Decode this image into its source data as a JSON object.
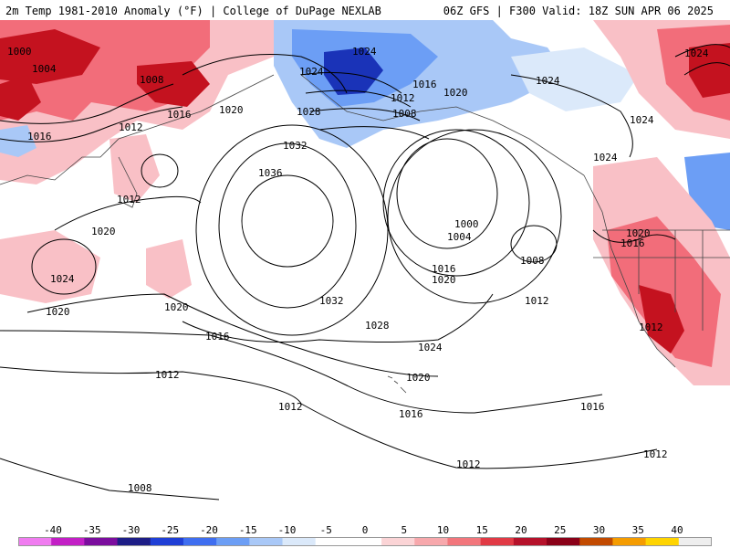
{
  "header": {
    "title_left": "2m Temp 1981-2010 Anomaly (°F) | College of DuPage NEXLAB",
    "title_right": "06Z GFS | F300 Valid: 18Z SUN APR 06 2025"
  },
  "legend": {
    "ticks": [
      "-40",
      "-35",
      "-30",
      "-25",
      "-20",
      "-15",
      "-10",
      "-5",
      "0",
      "5",
      "10",
      "15",
      "20",
      "25",
      "30",
      "35",
      "40"
    ],
    "colors": [
      "#f07cf0",
      "#c31fc6",
      "#7b0d9e",
      "#1d1d86",
      "#1f3fd6",
      "#3f6ef0",
      "#6c9ef5",
      "#a9c8f7",
      "#dbe9fa",
      "#ffffff",
      "#ffffff",
      "#fbd4d6",
      "#f7a8ac",
      "#f2767c",
      "#e13a45",
      "#b5112a",
      "#8a0018",
      "#c24a00",
      "#f59c00",
      "#ffd400",
      "#eeeeee"
    ]
  },
  "isobars": [
    {
      "value": "1000",
      "label": "1000"
    },
    {
      "value": "1004",
      "label": "1004"
    },
    {
      "value": "1008",
      "label": "1008"
    },
    {
      "value": "1012",
      "label": "1012"
    },
    {
      "value": "1016",
      "label": "1016"
    },
    {
      "value": "1020",
      "label": "1020"
    },
    {
      "value": "1024",
      "label": "1024"
    },
    {
      "value": "1028",
      "label": "1028"
    },
    {
      "value": "1032",
      "label": "1032"
    },
    {
      "value": "1036",
      "label": "1036"
    }
  ],
  "colors": {
    "warm": "#f26d7a",
    "warm_light": "#f9c0c6",
    "hot": "#c4121f",
    "cold": "#2d5be0",
    "cold_light": "#a9c8f7",
    "cold_deep": "#1a33b8",
    "contour": "#000000",
    "coast": "#444444"
  }
}
